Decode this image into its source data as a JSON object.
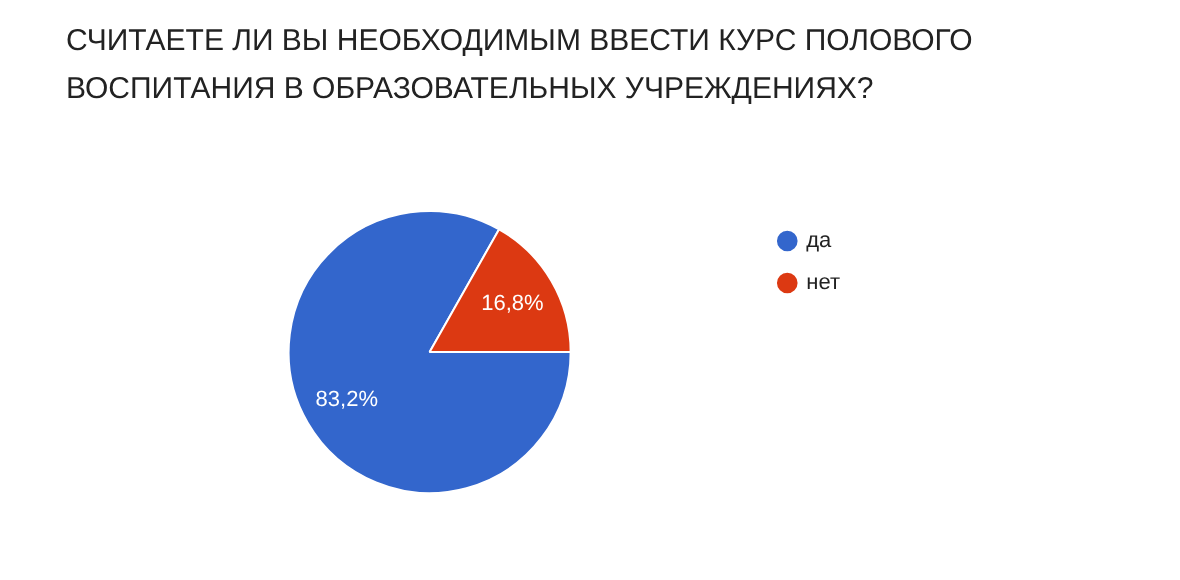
{
  "chart_data": {
    "type": "pie",
    "title": "СЧИТАЕТЕ ЛИ ВЫ НЕОБХОДИМЫМ ВВЕСТИ КУРС ПОЛОВОГО ВОСПИТАНИЯ В ОБРАЗОВАТЕЛЬНЫХ УЧРЕЖДЕНИЯХ?",
    "categories": [
      "да",
      "нет"
    ],
    "values": [
      83.2,
      16.8
    ],
    "colors": [
      "#3366cc",
      "#dc3912"
    ],
    "value_labels": [
      "83,2%",
      "16,8%"
    ],
    "legend": "right"
  }
}
